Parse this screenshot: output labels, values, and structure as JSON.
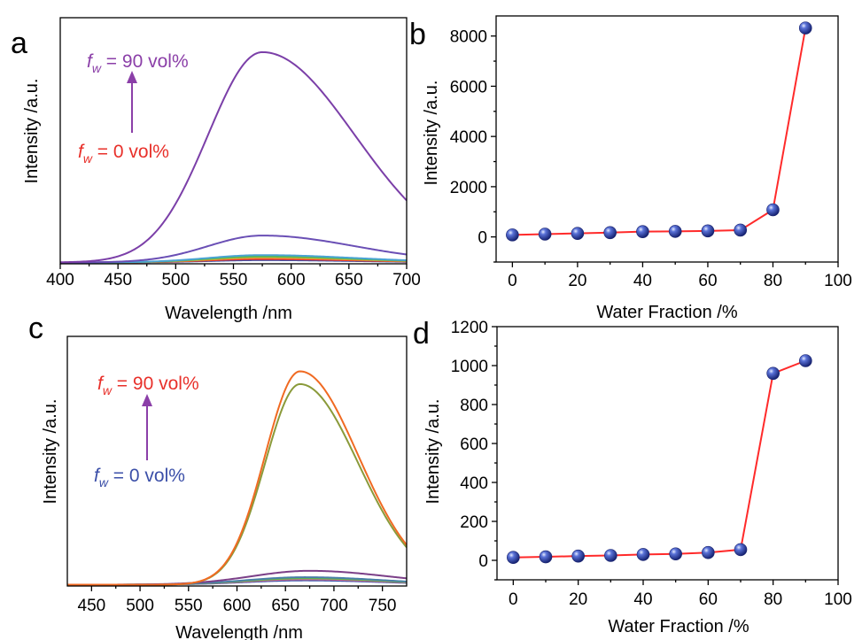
{
  "figure": {
    "title": "",
    "panel_labels": [
      "a",
      "b",
      "c",
      "d"
    ]
  },
  "chart_data": [
    {
      "panel": "a",
      "type": "line",
      "title": "",
      "xlabel": "Wavelength /nm",
      "ylabel": "Intensity /a.u.",
      "xlim": [
        400,
        700
      ],
      "xticks": [
        400,
        450,
        500,
        550,
        600,
        650,
        700
      ],
      "ylim": [
        0,
        1.0
      ],
      "y_ticks_shown": false,
      "grid": false,
      "legend": "none",
      "annotations": {
        "top": {
          "sym": "f",
          "sub": "w",
          "text": " = 90 vol%",
          "color": "#8b3fa8"
        },
        "bottom": {
          "sym": "f",
          "sub": "w",
          "text": " = 0 vol%",
          "color": "#e8302a"
        },
        "arrow_color": "#8b3fa8"
      },
      "series": [
        {
          "color": "#7b3fa8",
          "peak": 575,
          "amplitude": 1.0,
          "sigma_left": 47,
          "sigma_right": 80
        },
        {
          "color": "#6a4fb5",
          "peak": 575,
          "amplitude": 0.128,
          "sigma_left": 47,
          "sigma_right": 80
        },
        {
          "color": "#4aa3d3",
          "peak": 575,
          "amplitude": 0.035,
          "sigma_left": 47,
          "sigma_right": 80
        },
        {
          "color": "#5ab84a",
          "peak": 575,
          "amplitude": 0.028,
          "sigma_left": 47,
          "sigma_right": 80
        },
        {
          "color": "#e8a33a",
          "peak": 575,
          "amplitude": 0.022,
          "sigma_left": 47,
          "sigma_right": 80
        },
        {
          "color": "#e8302a",
          "peak": 575,
          "amplitude": 0.016,
          "sigma_left": 47,
          "sigma_right": 80
        },
        {
          "color": "#3b58b0",
          "peak": 575,
          "amplitude": 0.011,
          "sigma_left": 47,
          "sigma_right": 80
        }
      ]
    },
    {
      "panel": "b",
      "type": "scatter",
      "title": "",
      "xlabel": "Water Fraction /%",
      "ylabel": "Intensity /a.u.",
      "xlim": [
        -5,
        100
      ],
      "ylim": [
        -1000,
        8800
      ],
      "xticks": [
        0,
        20,
        40,
        60,
        80,
        100
      ],
      "yticks": [
        0,
        2000,
        4000,
        6000,
        8000
      ],
      "grid": false,
      "legend": "none",
      "line_color": "#ff2a2a",
      "marker_color": "#2a3fa8",
      "x": [
        0,
        10,
        20,
        30,
        40,
        50,
        60,
        70,
        80,
        90
      ],
      "y": [
        80,
        110,
        140,
        170,
        210,
        220,
        240,
        270,
        1080,
        8320
      ]
    },
    {
      "panel": "c",
      "type": "line",
      "title": "",
      "xlabel": "Wavelength /nm",
      "ylabel": "Intensity /a.u.",
      "xlim": [
        425,
        775
      ],
      "xticks": [
        450,
        500,
        550,
        600,
        650,
        700,
        750
      ],
      "ylim": [
        0,
        1.0
      ],
      "y_ticks_shown": false,
      "grid": false,
      "legend": "none",
      "annotations": {
        "top": {
          "sym": "f",
          "sub": "w",
          "text": " = 90 vol%",
          "color": "#e8302a"
        },
        "bottom": {
          "sym": "f",
          "sub": "w",
          "text": " = 0 vol%",
          "color": "#3b4fa8"
        },
        "arrow_color": "#8b3fa8"
      },
      "series": [
        {
          "color": "#f06a22",
          "peak": 665,
          "amplitude": 1.0,
          "sigma_left": 36,
          "sigma_right": 60
        },
        {
          "color": "#8a9a3a",
          "peak": 665,
          "amplitude": 0.94,
          "sigma_left": 36,
          "sigma_right": 60
        },
        {
          "color": "#7b3f88",
          "peak": 675,
          "amplitude": 0.065,
          "sigma_left": 60,
          "sigma_right": 80
        },
        {
          "color": "#4a7fa8",
          "peak": 670,
          "amplitude": 0.035,
          "sigma_left": 60,
          "sigma_right": 80
        },
        {
          "color": "#5ab84a",
          "peak": 670,
          "amplitude": 0.03,
          "sigma_left": 60,
          "sigma_right": 80
        },
        {
          "color": "#d36a8a",
          "peak": 670,
          "amplitude": 0.025,
          "sigma_left": 60,
          "sigma_right": 80
        },
        {
          "color": "#3b58b0",
          "peak": 670,
          "amplitude": 0.02,
          "sigma_left": 60,
          "sigma_right": 80
        }
      ]
    },
    {
      "panel": "d",
      "type": "scatter",
      "title": "",
      "xlabel": "Water Fraction /%",
      "ylabel": "Intensity /a.u.",
      "xlim": [
        -5,
        100
      ],
      "ylim": [
        -100,
        1200
      ],
      "xticks": [
        0,
        20,
        40,
        60,
        80,
        100
      ],
      "yticks": [
        0,
        200,
        400,
        600,
        800,
        1000,
        1200
      ],
      "grid": false,
      "legend": "none",
      "line_color": "#ff2a2a",
      "marker_color": "#2a3fa8",
      "x": [
        0,
        10,
        20,
        30,
        40,
        50,
        60,
        70,
        80,
        90
      ],
      "y": [
        15,
        18,
        22,
        25,
        30,
        33,
        40,
        55,
        960,
        1025
      ]
    }
  ]
}
